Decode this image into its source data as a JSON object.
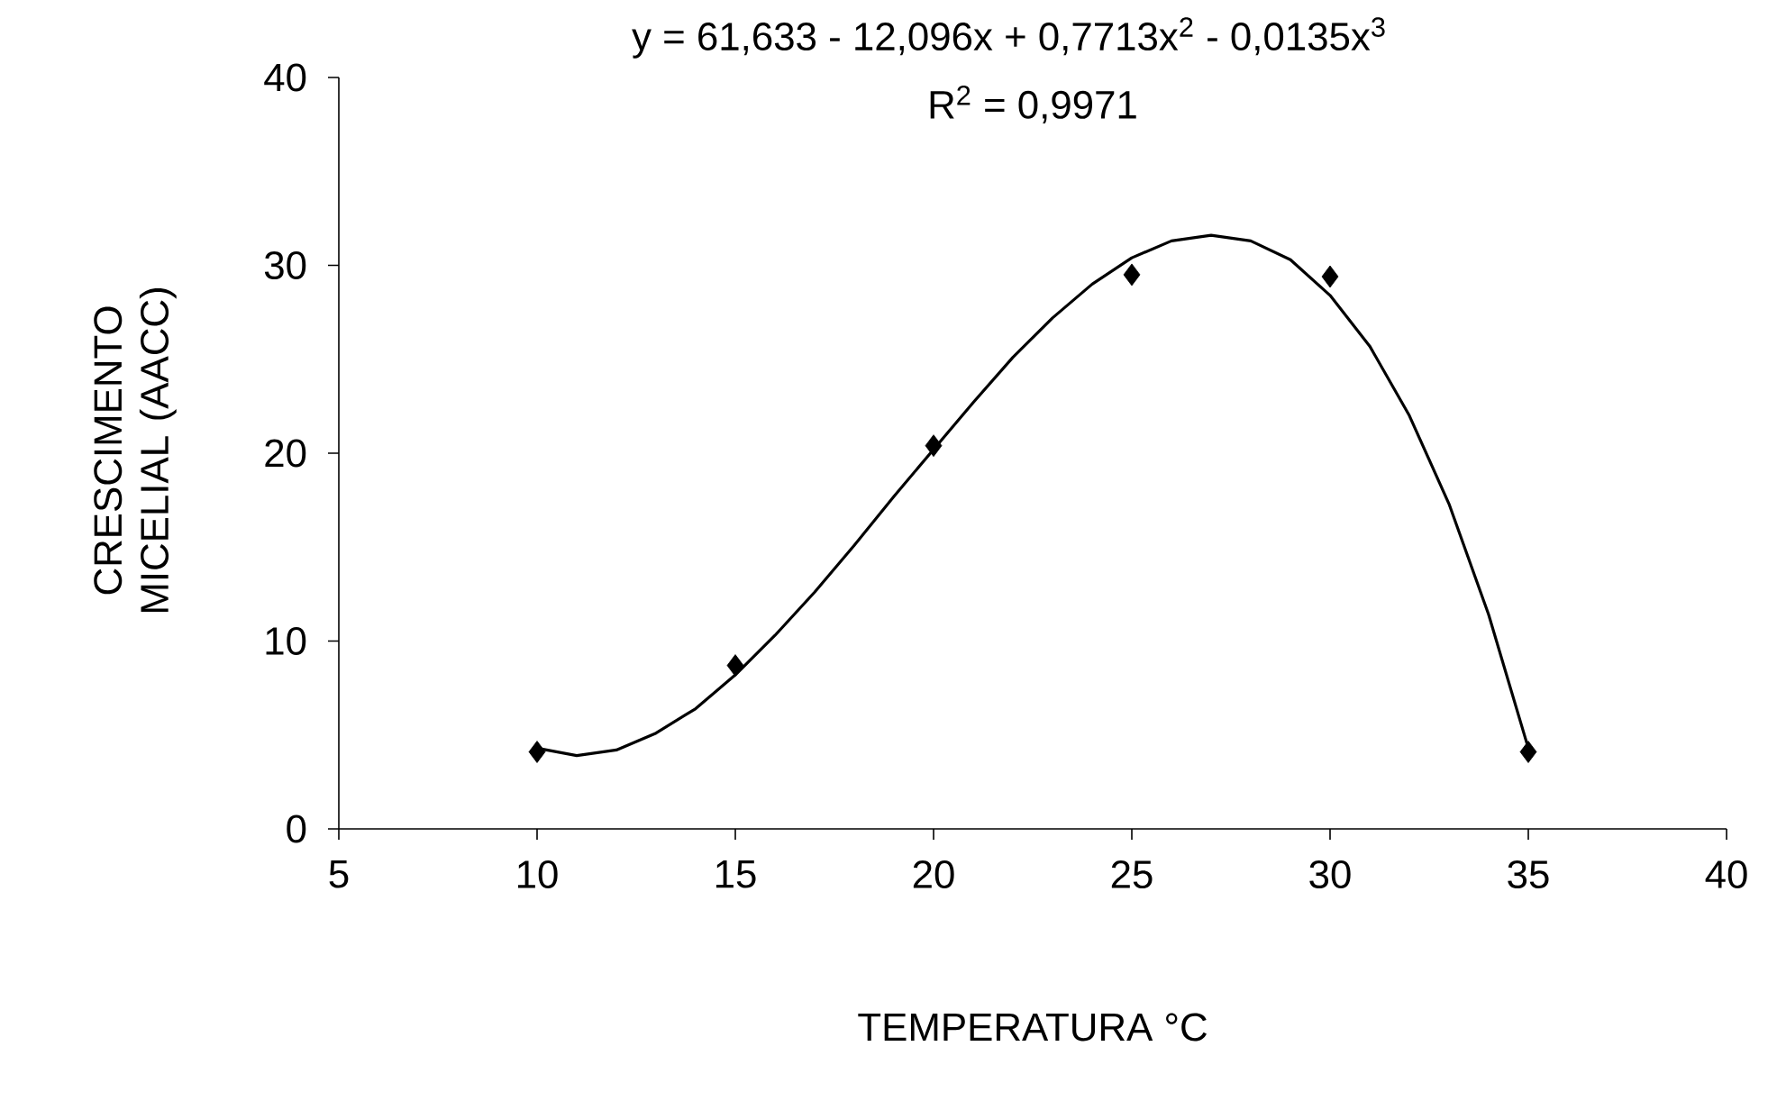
{
  "chart_data": {
    "type": "scatter",
    "xlabel": "TEMPERATURA °C",
    "ylabel": "CRESCIMENTO MICELIAL (AACC)",
    "annotations": [
      "y = 61,633 - 12,096x + 0,7713x$^{2}$ - 0,0135x$^{3}$",
      "R$^{2}$ = 0,9971"
    ],
    "xlim": [
      5,
      40
    ],
    "ylim": [
      0,
      40
    ],
    "xticks": [
      5,
      10,
      15,
      20,
      25,
      30,
      35,
      40
    ],
    "yticks": [
      0,
      10,
      20,
      30,
      40
    ],
    "grid": false,
    "series": [
      {
        "type": "line",
        "marker": "none",
        "line_style": "solid",
        "color": "#000000",
        "x": [
          10,
          11,
          12,
          13,
          14,
          15,
          16,
          17,
          18,
          19,
          20,
          21,
          22,
          23,
          24,
          25,
          26,
          27,
          28,
          29,
          30,
          31,
          32,
          33,
          34,
          35
        ],
        "values": [
          4.3,
          3.9,
          4.2,
          5.1,
          6.4,
          8.2,
          10.3,
          12.6,
          15.1,
          17.7,
          20.2,
          22.7,
          25.1,
          27.2,
          29.0,
          30.4,
          31.3,
          31.6,
          31.3,
          30.3,
          28.4,
          25.7,
          22.0,
          17.3,
          11.4,
          4.3
        ]
      },
      {
        "marker": "diamond",
        "color": "#000000",
        "x": [
          10,
          15,
          20,
          25,
          30,
          35
        ],
        "values": [
          4.1,
          8.7,
          20.4,
          29.5,
          29.4,
          4.1
        ]
      }
    ]
  }
}
